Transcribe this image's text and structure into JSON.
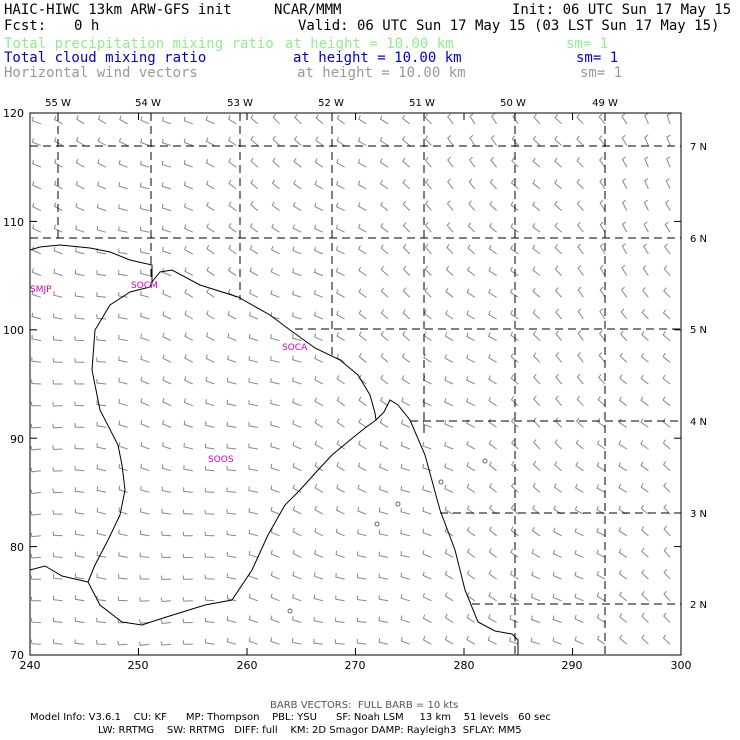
{
  "header": {
    "model_title": "HAIC-HIWC 13km ARW-GFS init",
    "org": "NCAR/MMM",
    "init_time": "Init: 06 UTC Sun 17 May 15",
    "fcst_label": "Fcst:",
    "fcst_value": "0 h",
    "valid_time": "Valid: 06 UTC Sun 17 May 15 (03 LST Sun 17 May 15)"
  },
  "fields": [
    {
      "name": "Total precipitation mixing ratio",
      "level": "at height = 10.00 km",
      "sm": "sm= 1",
      "color": "#90ee90"
    },
    {
      "name": "Total cloud mixing ratio",
      "level": "at height = 10.00 km",
      "sm": "sm= 1",
      "color": "#0000cc"
    },
    {
      "name": "Horizontal wind vectors",
      "level": "at height = 10.00 km",
      "sm": "sm= 1",
      "color": "#999999"
    }
  ],
  "map": {
    "x_ticks": [
      "240",
      "250",
      "260",
      "270",
      "280",
      "290",
      "300"
    ],
    "y_ticks": [
      "120",
      "110",
      "100",
      "90",
      "80",
      "70"
    ],
    "lon_labels": [
      "55 W",
      "54 W",
      "53 W",
      "52 W",
      "51 W",
      "50 W",
      "49 W"
    ],
    "lat_labels": [
      "7 N",
      "6 N",
      "5 N",
      "4 N",
      "3 N",
      "2 N"
    ],
    "stations": [
      {
        "id": "SMJP"
      },
      {
        "id": "SOCM"
      },
      {
        "id": "SOCA"
      },
      {
        "id": "SOOS"
      }
    ],
    "station_color": "#cc00cc"
  },
  "footer": {
    "barb_note": "BARB VECTORS:  FULL BARB = 10 kts",
    "model_info_1": "Model Info: V3.6.1    CU: KF      MP: Thompson    PBL: YSU      SF: Noah LSM     13 km    51 levels   60 sec",
    "model_info_2": "LW: RRTMG    SW: RRTMG   DIFF: full    KM: 2D Smagor DAMP: Rayleigh3  SFLAY: MM5"
  }
}
